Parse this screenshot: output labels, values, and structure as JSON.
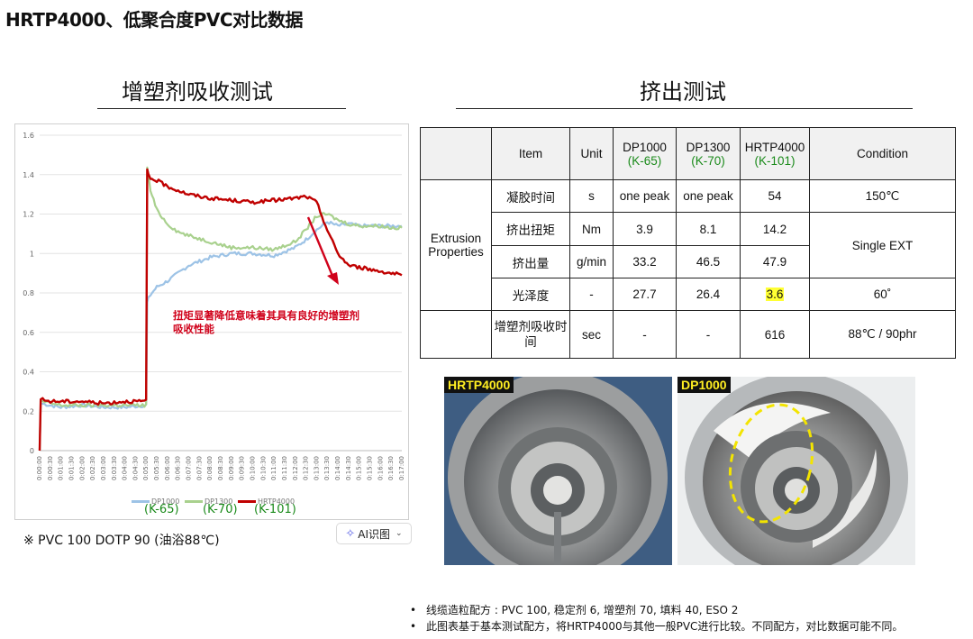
{
  "page_title": "HRTP4000、低聚合度PVC对比数据",
  "left_section_title": "增塑剂吸收测试",
  "right_section_title": "挤出测试",
  "annotation": [
    "扭矩显著降低意味着其具有良好的增塑剂",
    "吸收性能"
  ],
  "footnote": "※ PVC 100 DOTP 90 (油浴88℃)",
  "ai_button": {
    "icon": "ai-icon",
    "label": "AI识图",
    "caret": "⌄"
  },
  "colors": {
    "dp1000": "#9dc3e6",
    "dp1300": "#a9d18e",
    "hrtp4000": "#c00000",
    "annotation": "#d0021b",
    "k_label": "#1a8a1a",
    "highlight": "#ffff33",
    "photo_tag": "#ffee22"
  },
  "chart_data": {
    "type": "line",
    "title": "",
    "xlabel": "",
    "ylabel": "",
    "ylim": [
      0,
      1.6
    ],
    "yticks": [
      "0",
      "0.2",
      "0.4",
      "0.6",
      "0.8",
      "1",
      "1.2",
      "1.4",
      "1.6"
    ],
    "xticks": [
      "0:00:00",
      "0:00:30",
      "0:01:00",
      "0:01:30",
      "0:02:00",
      "0:02:30",
      "0:03:00",
      "0:03:30",
      "0:04:00",
      "0:04:30",
      "0:05:00",
      "0:05:30",
      "0:06:00",
      "0:06:30",
      "0:07:00",
      "0:07:30",
      "0:08:00",
      "0:08:30",
      "0:09:00",
      "0:09:30",
      "0:10:00",
      "0:10:30",
      "0:11:00",
      "0:11:30",
      "0:12:00",
      "0:12:30",
      "0:13:00",
      "0:13:30",
      "0:14:00",
      "0:14:30",
      "0:15:00",
      "0:15:30",
      "0:16:00",
      "0:16:30",
      "0:17:00"
    ],
    "x_minutes": [
      0,
      0.05,
      0.5,
      1,
      2,
      3,
      4,
      5,
      5.05,
      5.1,
      5.2,
      5.5,
      6,
      6.5,
      7,
      8,
      9,
      10,
      11,
      12,
      12.5,
      13,
      13.5,
      14,
      14.5,
      15,
      15.5,
      16,
      16.5,
      17
    ],
    "series": [
      {
        "name": "DP1000",
        "k_label": "(K-65)",
        "color": "#9dc3e6",
        "values": [
          0,
          0.24,
          0.23,
          0.22,
          0.23,
          0.22,
          0.22,
          0.23,
          0.75,
          0.77,
          0.79,
          0.83,
          0.86,
          0.9,
          0.94,
          0.98,
          1.0,
          1.0,
          0.99,
          1.03,
          1.07,
          1.12,
          1.16,
          1.14,
          1.15,
          1.14,
          1.14,
          1.14,
          1.14,
          1.14
        ]
      },
      {
        "name": "DP1300",
        "k_label": "(K-70)",
        "color": "#a9d18e",
        "values": [
          0,
          0.25,
          0.24,
          0.23,
          0.23,
          0.23,
          0.23,
          0.23,
          1.44,
          1.4,
          1.32,
          1.22,
          1.15,
          1.11,
          1.09,
          1.06,
          1.03,
          1.03,
          1.02,
          1.06,
          1.12,
          1.19,
          1.2,
          1.17,
          1.15,
          1.14,
          1.14,
          1.14,
          1.13,
          1.13
        ]
      },
      {
        "name": "HRTP4000",
        "k_label": "(K-101)",
        "color": "#c00000",
        "values": [
          0,
          0.26,
          0.25,
          0.25,
          0.25,
          0.24,
          0.25,
          0.25,
          1.42,
          1.4,
          1.38,
          1.37,
          1.34,
          1.32,
          1.3,
          1.28,
          1.27,
          1.26,
          1.27,
          1.28,
          1.29,
          1.26,
          1.12,
          1.0,
          0.94,
          0.93,
          0.92,
          0.91,
          0.9,
          0.89
        ]
      }
    ],
    "legend_position": "bottom"
  },
  "table": {
    "header": [
      {
        "lines": [
          "Item"
        ]
      },
      {
        "lines": [
          "Unit"
        ]
      },
      {
        "lines": [
          "DP1000"
        ],
        "k": "(K-65)"
      },
      {
        "lines": [
          "DP1300"
        ],
        "k": "(K-70)"
      },
      {
        "lines": [
          "HRTP4000"
        ],
        "k": "(K-101)"
      },
      {
        "lines": [
          "Condition"
        ]
      }
    ],
    "group_label": "Extrusion Properties",
    "rows": [
      {
        "item": "凝胶时间",
        "unit": "s",
        "dp1000": "one peak",
        "dp1300": "one peak",
        "hrtp4000": "54",
        "condition": "150℃"
      },
      {
        "item": "挤出扭矩",
        "unit": "Nm",
        "dp1000": "3.9",
        "dp1300": "8.1",
        "hrtp4000": "14.2",
        "condition": "Single EXT"
      },
      {
        "item": "挤出量",
        "unit": "g/min",
        "dp1000": "33.2",
        "dp1300": "46.5",
        "hrtp4000": "47.9"
      },
      {
        "item": "光泽度",
        "unit": "-",
        "dp1000": "27.7",
        "dp1300": "26.4",
        "hrtp4000": "3.6",
        "condition": "60˚"
      },
      {
        "item": "增塑剂吸收时间",
        "unit": "sec",
        "dp1000": "-",
        "dp1300": "-",
        "hrtp4000": "616",
        "condition": "88℃ / 90phr"
      }
    ]
  },
  "photos": [
    {
      "tag": "HRTP4000"
    },
    {
      "tag": "DP1000"
    }
  ],
  "notes": [
    "线缆造粒配方 : PVC 100, 稳定剂 6, 增塑剂 70, 填料 40, ESO 2",
    "此图表基于基本测试配方，将HRTP4000与其他一般PVC进行比较。不同配方，对比数据可能不同。"
  ]
}
